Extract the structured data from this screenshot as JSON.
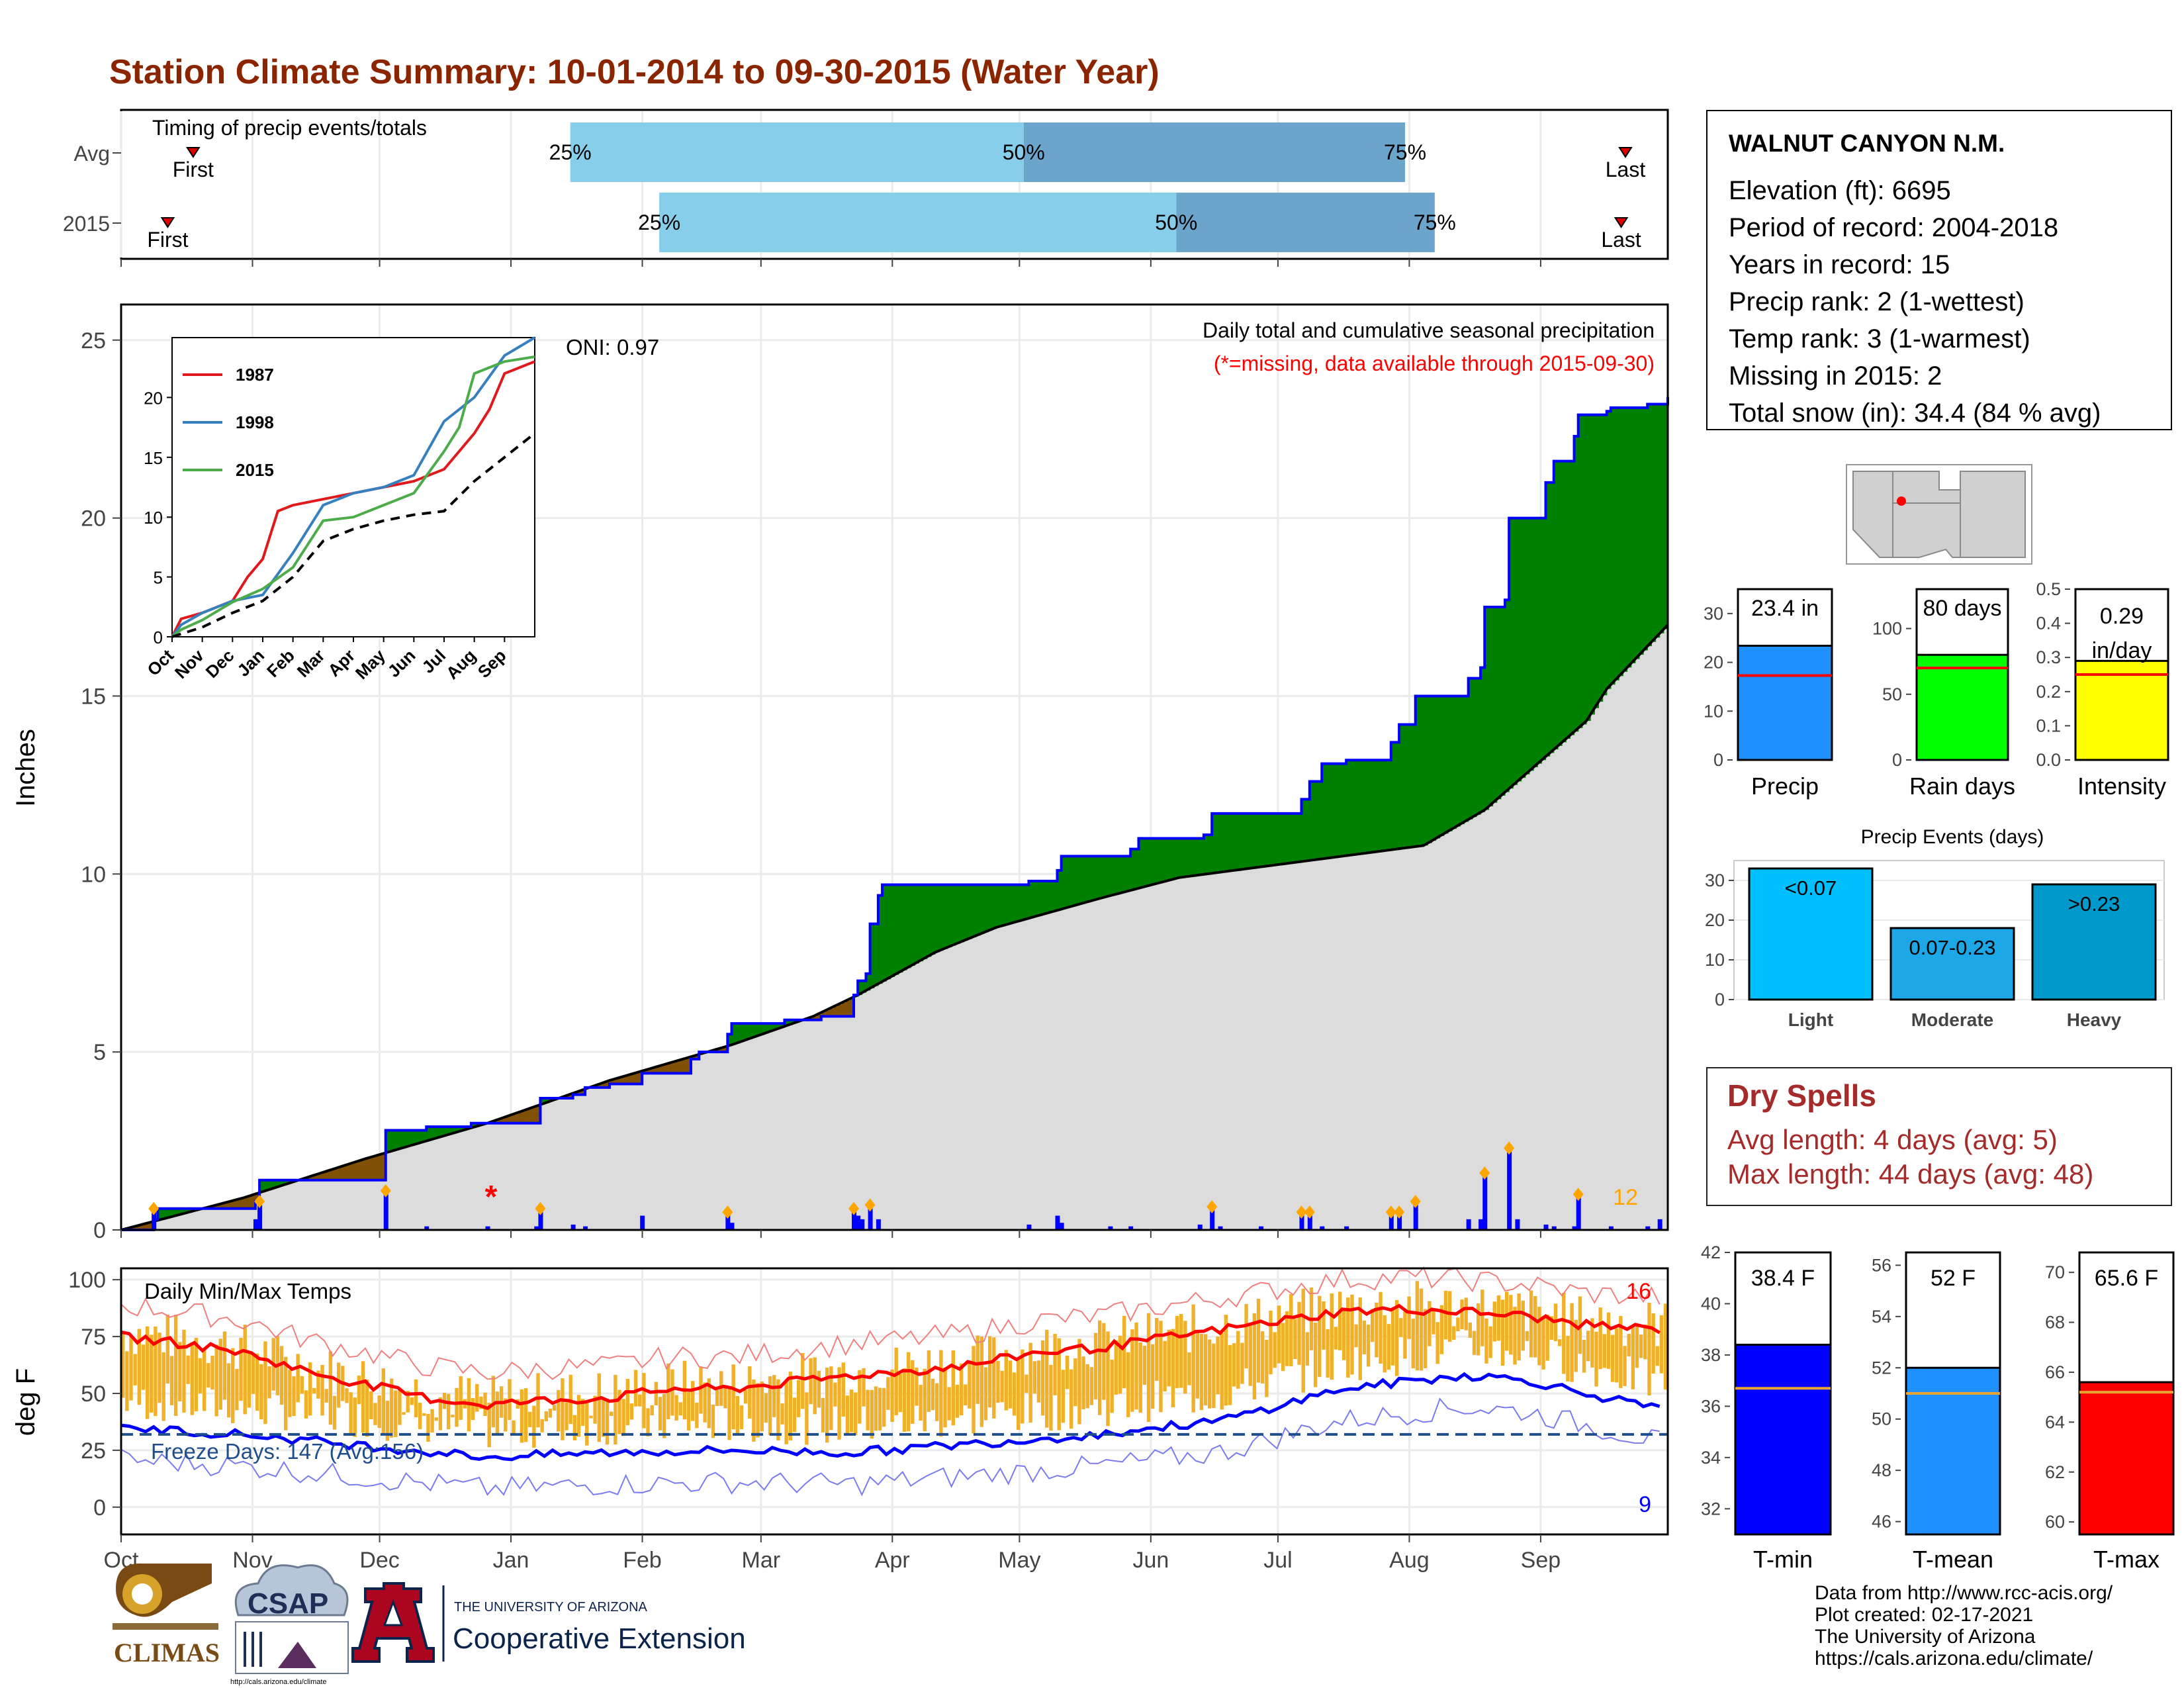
{
  "title": "Station Climate Summary: 10-01-2014 to 09-30-2015 (Water Year)",
  "station": {
    "name": "WALNUT CANYON N.M.",
    "lines": [
      "Elevation (ft): 6695",
      "Period of record: 2004-2018",
      "Years in record: 15",
      "Precip rank: 2 (1-wettest)",
      "Temp rank: 3 (1-warmest)",
      "Missing in 2015: 2",
      "Total snow (in): 34.4 (84 % avg)"
    ]
  },
  "dry_spells": {
    "heading": "Dry Spells",
    "avg": "Avg length: 4 days (avg: 5)",
    "max": "Max length: 44 days (avg: 48)"
  },
  "credits": [
    "Data from http://www.rcc-acis.org/",
    "Plot created: 02-17-2021",
    "The University of Arizona",
    "https://cals.arizona.edu/climate/"
  ],
  "logos": {
    "climas": "CLIMAS",
    "csap": "CSAP",
    "csap_url": "http://cals.arizona.edu/climate",
    "ua_small": "THE UNIVERSITY OF ARIZONA",
    "ua_big": "Cooperative Extension"
  },
  "colors": {
    "title": "#8b2500",
    "green": "#008000",
    "brown": "#7f5005",
    "blue": "#0000ff",
    "gray_fill": "#dcdcdc",
    "light_blue": "#87ceeb",
    "steel_blue": "#6ca5cc",
    "orange": "#f0b028",
    "red": "#ff0000",
    "dry_red": "#a52a2a"
  },
  "chart_data": [
    {
      "type": "bar",
      "name": "timing",
      "title": "Timing of precip events/totals",
      "categories": [
        "Avg",
        "2015"
      ],
      "x_axis": "month",
      "rows": [
        {
          "label": "Avg",
          "first": "Oct 18",
          "q25": "Jan 15",
          "q50": "May 2",
          "q75": "Jul 31",
          "last": "Sep 21",
          "first_label": "First",
          "p25_label": "25%",
          "p50_label": "50%",
          "p75_label": "75%",
          "last_label": "Last"
        },
        {
          "label": "2015",
          "first": "Oct 12",
          "q25": "Feb 5",
          "q50": "Jun 7",
          "q75": "Aug 7",
          "last": "Sep 20",
          "first_label": "First",
          "p25_label": "25%",
          "p50_label": "50%",
          "p75_label": "75%",
          "last_label": "Last"
        }
      ]
    },
    {
      "type": "area",
      "name": "cumulative_precip",
      "title": "Daily total and cumulative seasonal precipitation",
      "subtitle": "(*=missing, data available through 2015-09-30)",
      "oni": "ONI: 0.97",
      "ylabel": "Inches",
      "ylim": [
        0,
        26
      ],
      "yticks": [
        0,
        5,
        10,
        15,
        20,
        25
      ],
      "annotation_count": "12",
      "cumulative_2015": [
        [
          0,
          0
        ],
        [
          8,
          0.3
        ],
        [
          9,
          0.6
        ],
        [
          32,
          0.6
        ],
        [
          33,
          0.8
        ],
        [
          34,
          1.4
        ],
        [
          64,
          1.4
        ],
        [
          65,
          2.8
        ],
        [
          75,
          2.9
        ],
        [
          86,
          3.0
        ],
        [
          100,
          3.0
        ],
        [
          103,
          3.7
        ],
        [
          111,
          3.8
        ],
        [
          114,
          4.0
        ],
        [
          120,
          4.1
        ],
        [
          128,
          4.4
        ],
        [
          140,
          4.8
        ],
        [
          142,
          5.0
        ],
        [
          146,
          5.0
        ],
        [
          149,
          5.5
        ],
        [
          150,
          5.8
        ],
        [
          152,
          5.8
        ],
        [
          160,
          5.8
        ],
        [
          163,
          5.9
        ],
        [
          172,
          6.0
        ],
        [
          179,
          6.0
        ],
        [
          180,
          6.6
        ],
        [
          181,
          7.0
        ],
        [
          183,
          7.2
        ],
        [
          184,
          8.6
        ],
        [
          186,
          9.4
        ],
        [
          187,
          9.7
        ],
        [
          222,
          9.7
        ],
        [
          223,
          9.8
        ],
        [
          230,
          10.1
        ],
        [
          231,
          10.5
        ],
        [
          243,
          10.5
        ],
        [
          248,
          10.7
        ],
        [
          250,
          11.0
        ],
        [
          265,
          11.0
        ],
        [
          266,
          11.1
        ],
        [
          268,
          11.7
        ],
        [
          285,
          11.7
        ],
        [
          290,
          12.1
        ],
        [
          292,
          12.6
        ],
        [
          295,
          13.1
        ],
        [
          301,
          13.2
        ],
        [
          312,
          13.7
        ],
        [
          314,
          14.2
        ],
        [
          318,
          15.0
        ],
        [
          330,
          15.0
        ],
        [
          331,
          15.5
        ],
        [
          334,
          15.8
        ],
        [
          335,
          17.5
        ],
        [
          340,
          17.7
        ],
        [
          341,
          20.0
        ],
        [
          350,
          21.0
        ],
        [
          352,
          21.6
        ],
        [
          357,
          22.3
        ],
        [
          358,
          22.9
        ],
        [
          365,
          23.0
        ],
        [
          366,
          23.1
        ],
        [
          375,
          23.2
        ],
        [
          380,
          23.4
        ]
      ],
      "cumulative_avg": [
        [
          0,
          0
        ],
        [
          30,
          0.9
        ],
        [
          60,
          2.0
        ],
        [
          90,
          3.0
        ],
        [
          120,
          4.2
        ],
        [
          150,
          5.2
        ],
        [
          170,
          6.0
        ],
        [
          181,
          6.6
        ],
        [
          200,
          7.8
        ],
        [
          215,
          8.5
        ],
        [
          240,
          9.3
        ],
        [
          260,
          9.9
        ],
        [
          280,
          10.2
        ],
        [
          300,
          10.5
        ],
        [
          320,
          10.8
        ],
        [
          335,
          11.8
        ],
        [
          350,
          13.3
        ],
        [
          360,
          14.3
        ],
        [
          365,
          15.2
        ],
        [
          380,
          17.0
        ]
      ],
      "daily_bars": [
        [
          8,
          0.6
        ],
        [
          33,
          0.3
        ],
        [
          34,
          0.8
        ],
        [
          65,
          1.1
        ],
        [
          75,
          0.1
        ],
        [
          90,
          0.1
        ],
        [
          102,
          0.1
        ],
        [
          103,
          0.6
        ],
        [
          111,
          0.15
        ],
        [
          114,
          0.1
        ],
        [
          128,
          0.4
        ],
        [
          149,
          0.5
        ],
        [
          150,
          0.2
        ],
        [
          180,
          0.6
        ],
        [
          181,
          0.4
        ],
        [
          182,
          0.3
        ],
        [
          184,
          0.7
        ],
        [
          186,
          0.3
        ],
        [
          223,
          0.15
        ],
        [
          230,
          0.4
        ],
        [
          231,
          0.2
        ],
        [
          243,
          0.1
        ],
        [
          248,
          0.1
        ],
        [
          265,
          0.15
        ],
        [
          268,
          0.65
        ],
        [
          270,
          0.1
        ],
        [
          280,
          0.1
        ],
        [
          290,
          0.5
        ],
        [
          292,
          0.5
        ],
        [
          295,
          0.1
        ],
        [
          301,
          0.1
        ],
        [
          312,
          0.5
        ],
        [
          314,
          0.5
        ],
        [
          318,
          0.8
        ],
        [
          331,
          0.3
        ],
        [
          334,
          0.3
        ],
        [
          335,
          1.6
        ],
        [
          341,
          2.3
        ],
        [
          343,
          0.3
        ],
        [
          350,
          0.15
        ],
        [
          352,
          0.1
        ],
        [
          357,
          0.1
        ],
        [
          358,
          1.0
        ],
        [
          366,
          0.1
        ],
        [
          375,
          0.1
        ],
        [
          378,
          0.3
        ]
      ]
    },
    {
      "type": "line",
      "name": "inset_cumulative",
      "yticks": [
        0,
        5,
        10,
        15,
        20
      ],
      "months": [
        "Oct",
        "Nov",
        "Dec",
        "Jan",
        "Feb",
        "Mar",
        "Apr",
        "May",
        "Jun",
        "Jul",
        "Aug",
        "Sep"
      ],
      "series": [
        {
          "name": "1987",
          "color": "#e0191d",
          "points": [
            [
              0,
              0
            ],
            [
              0.3,
              1.5
            ],
            [
              1,
              2
            ],
            [
              2,
              3
            ],
            [
              2.5,
              5
            ],
            [
              3,
              6.5
            ],
            [
              3.5,
              10.5
            ],
            [
              4,
              11
            ],
            [
              5,
              11.5
            ],
            [
              6,
              12
            ],
            [
              7,
              12.5
            ],
            [
              8,
              13
            ],
            [
              9,
              14
            ],
            [
              10,
              17
            ],
            [
              10.5,
              19
            ],
            [
              11,
              22
            ],
            [
              12,
              23
            ]
          ]
        },
        {
          "name": "1998",
          "color": "#3780bf",
          "points": [
            [
              0,
              0
            ],
            [
              0.3,
              1
            ],
            [
              1,
              2
            ],
            [
              2,
              3
            ],
            [
              3,
              3.5
            ],
            [
              4,
              7
            ],
            [
              5,
              11
            ],
            [
              6,
              12
            ],
            [
              7,
              12.5
            ],
            [
              8,
              13.5
            ],
            [
              9,
              18
            ],
            [
              10,
              20
            ],
            [
              11,
              23.5
            ],
            [
              12,
              25
            ]
          ]
        },
        {
          "name": "2015",
          "color": "#4dac4a",
          "points": [
            [
              0,
              0
            ],
            [
              0.3,
              0.6
            ],
            [
              1,
              1.4
            ],
            [
              2,
              2.9
            ],
            [
              3,
              4
            ],
            [
              4,
              5.8
            ],
            [
              5,
              9.7
            ],
            [
              6,
              10
            ],
            [
              7,
              11
            ],
            [
              8,
              12
            ],
            [
              9,
              15.5
            ],
            [
              9.5,
              17.5
            ],
            [
              10,
              22
            ],
            [
              11,
              23
            ],
            [
              12,
              23.4
            ]
          ]
        },
        {
          "name": "Avg",
          "color": "#000000",
          "dashed": true,
          "points": [
            [
              0,
              0
            ],
            [
              1,
              0.8
            ],
            [
              2,
              2
            ],
            [
              3,
              3
            ],
            [
              4,
              5
            ],
            [
              5,
              8
            ],
            [
              6,
              9
            ],
            [
              7,
              9.7
            ],
            [
              8,
              10.2
            ],
            [
              9,
              10.5
            ],
            [
              10,
              13
            ],
            [
              11,
              15
            ],
            [
              12,
              17
            ]
          ]
        }
      ]
    },
    {
      "type": "line",
      "name": "temps",
      "title": "Daily Min/Max Temps",
      "ylabel": "deg F",
      "ylim": [
        -12,
        105
      ],
      "yticks": [
        0,
        25,
        50,
        75,
        100
      ],
      "freeze_label": "Freeze Days: 147 (Avg:156)",
      "freeze_line": 32,
      "count_hot": "16",
      "count_cold": "9",
      "xticks": [
        "Oct",
        "Nov",
        "Dec",
        "Jan",
        "Feb",
        "Mar",
        "Apr",
        "May",
        "Jun",
        "Jul",
        "Aug",
        "Sep"
      ],
      "max_avg": [
        [
          0,
          75
        ],
        [
          15,
          72
        ],
        [
          30,
          68
        ],
        [
          45,
          60
        ],
        [
          60,
          54
        ],
        [
          75,
          48
        ],
        [
          90,
          45
        ],
        [
          105,
          47
        ],
        [
          120,
          48
        ],
        [
          135,
          52
        ],
        [
          150,
          52
        ],
        [
          165,
          55
        ],
        [
          180,
          58
        ],
        [
          195,
          60
        ],
        [
          210,
          63
        ],
        [
          225,
          68
        ],
        [
          240,
          70
        ],
        [
          255,
          74
        ],
        [
          270,
          78
        ],
        [
          285,
          82
        ],
        [
          300,
          86
        ],
        [
          315,
          87
        ],
        [
          330,
          86
        ],
        [
          345,
          84
        ],
        [
          360,
          80
        ],
        [
          380,
          78
        ]
      ],
      "min_avg": [
        [
          0,
          35
        ],
        [
          30,
          32
        ],
        [
          60,
          27
        ],
        [
          90,
          22
        ],
        [
          120,
          24
        ],
        [
          150,
          25
        ],
        [
          180,
          24
        ],
        [
          210,
          28
        ],
        [
          240,
          32
        ],
        [
          270,
          38
        ],
        [
          300,
          52
        ],
        [
          330,
          58
        ],
        [
          345,
          56
        ],
        [
          360,
          50
        ],
        [
          380,
          42
        ]
      ]
    },
    {
      "type": "bar",
      "name": "season_bars",
      "panels": [
        {
          "label": "Precip",
          "value": 23.4,
          "avg": 17.3,
          "text": "23.4 in",
          "ymax": 35,
          "yticks": [
            0,
            10,
            20,
            30
          ],
          "color": "#1e90ff"
        },
        {
          "label": "Rain days",
          "value": 80,
          "avg": 70,
          "text": "80 days",
          "ymax": 130,
          "yticks": [
            0,
            50,
            100
          ],
          "color": "#00ff00"
        },
        {
          "label": "Intensity",
          "value": 0.29,
          "avg": 0.25,
          "text": "0.29 in/day",
          "ymax": 0.5,
          "yticks": [
            0.0,
            0.1,
            0.2,
            0.3,
            0.4,
            0.5
          ],
          "color": "#ffff00"
        }
      ]
    },
    {
      "type": "bar",
      "name": "precip_events",
      "title": "Precip Events (days)",
      "categories": [
        "Light",
        "Moderate",
        "Heavy"
      ],
      "values": [
        33,
        18,
        29
      ],
      "labels": [
        "<0.07",
        "0.07-0.23",
        ">0.23"
      ],
      "yticks": [
        0,
        10,
        20,
        30
      ],
      "ylim": [
        0,
        35
      ]
    },
    {
      "type": "bar",
      "name": "temp_bars",
      "panels": [
        {
          "label": "T-min",
          "value": 38.4,
          "avg": 36.7,
          "text": "38.4 F",
          "ylim": [
            31,
            42
          ],
          "yticks": [
            32,
            34,
            36,
            38,
            40,
            42
          ],
          "color": "#0000ff"
        },
        {
          "label": "T-mean",
          "value": 52,
          "avg": 51,
          "text": "52 F",
          "ylim": [
            45.5,
            56.5
          ],
          "yticks": [
            46,
            48,
            50,
            52,
            54,
            56
          ],
          "color": "#1e90ff"
        },
        {
          "label": "T-max",
          "value": 65.6,
          "avg": 65.2,
          "text": "65.6 F",
          "ylim": [
            59.5,
            70.8
          ],
          "yticks": [
            60,
            62,
            64,
            66,
            68,
            70
          ],
          "color": "#ff0000"
        }
      ]
    }
  ]
}
